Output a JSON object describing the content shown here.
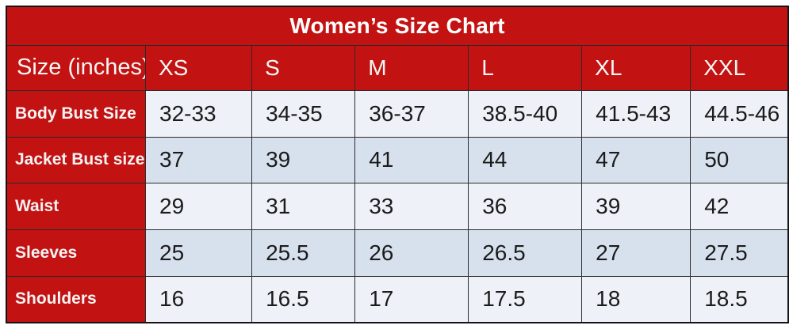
{
  "title": "Women’s Size Chart",
  "colors": {
    "red": "#c31212",
    "row_light": "#eef1f8",
    "row_dark": "#d7e1ee",
    "border": "#141414",
    "header_text": "#ffffff",
    "cell_text": "#1b1b1b"
  },
  "header": {
    "label": "Size (inches)",
    "sizes": [
      "XS",
      "S",
      "M",
      "L",
      "XL",
      "XXL"
    ]
  },
  "rows": [
    {
      "label": "Body Bust Size",
      "values": [
        "32-33",
        "34-35",
        "36-37",
        "38.5-40",
        "41.5-43",
        "44.5-46"
      ]
    },
    {
      "label": "Jacket Bust size",
      "values": [
        "37",
        "39",
        "41",
        "44",
        "47",
        "50"
      ]
    },
    {
      "label": "Waist",
      "values": [
        "29",
        "31",
        "33",
        "36",
        "39",
        "42"
      ]
    },
    {
      "label": "Sleeves",
      "values": [
        "25",
        "25.5",
        "26",
        "26.5",
        "27",
        "27.5"
      ]
    },
    {
      "label": "Shoulders",
      "values": [
        "16",
        "16.5",
        "17",
        "17.5",
        "18",
        "18.5"
      ]
    }
  ],
  "chart_data": {
    "type": "table",
    "title": "Women’s Size Chart",
    "unit": "inches",
    "columns": [
      "Size (inches)",
      "XS",
      "S",
      "M",
      "L",
      "XL",
      "XXL"
    ],
    "series": [
      {
        "name": "Body Bust Size",
        "values": [
          "32-33",
          "34-35",
          "36-37",
          "38.5-40",
          "41.5-43",
          "44.5-46"
        ]
      },
      {
        "name": "Jacket Bust size",
        "values": [
          37,
          39,
          41,
          44,
          47,
          50
        ]
      },
      {
        "name": "Waist",
        "values": [
          29,
          31,
          33,
          36,
          39,
          42
        ]
      },
      {
        "name": "Sleeves",
        "values": [
          25,
          25.5,
          26,
          26.5,
          27,
          27.5
        ]
      },
      {
        "name": "Shoulders",
        "values": [
          16,
          16.5,
          17,
          17.5,
          18,
          18.5
        ]
      }
    ],
    "layout": "row-labels in red left column, alternating light/dark striped data rows"
  }
}
